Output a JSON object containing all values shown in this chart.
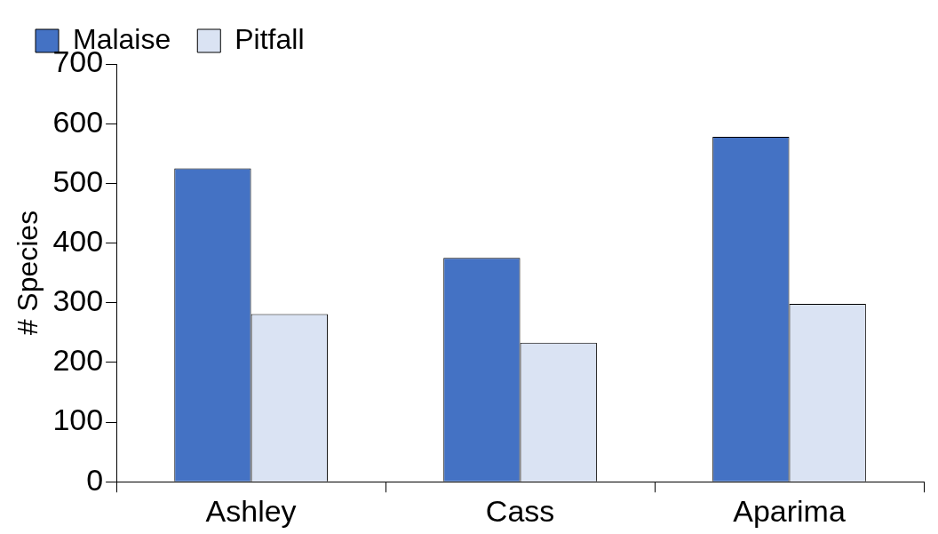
{
  "chart_data": {
    "type": "bar",
    "ylabel": "# Species",
    "categories": [
      "Ashley",
      "Cass",
      "Aparima"
    ],
    "series": [
      {
        "name": "Malaise",
        "color": "#4472c4",
        "values": [
          525,
          375,
          578
        ]
      },
      {
        "name": "Pitfall",
        "color": "#dae3f3",
        "values": [
          281,
          233,
          298
        ]
      }
    ],
    "ylim": [
      0,
      700
    ],
    "yticks": [
      0,
      100,
      200,
      300,
      400,
      500,
      600,
      700
    ],
    "grid": false,
    "legend": "top left"
  }
}
